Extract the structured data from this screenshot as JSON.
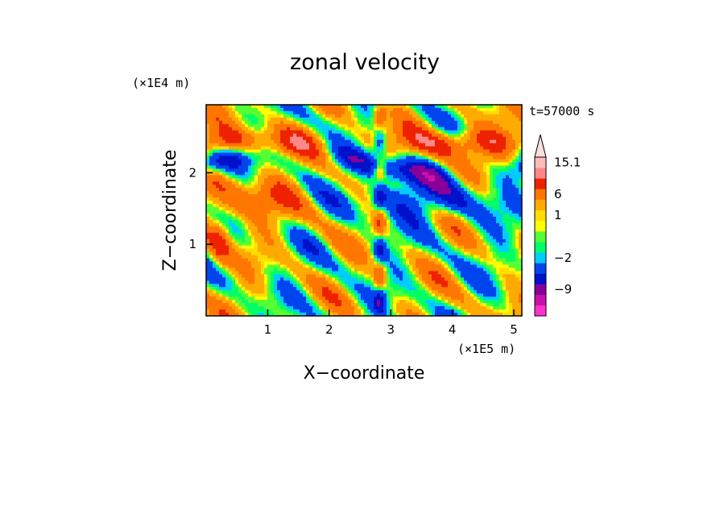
{
  "chart_data": {
    "type": "heatmap",
    "title": "zonal velocity",
    "xlabel": "X−coordinate",
    "ylabel": "Z−coordinate",
    "x_unit": "(×1E5 m)",
    "y_unit": "(×1E4 m)",
    "time_label": "t=57000 s",
    "xlim": [
      0,
      5.13
    ],
    "ylim": [
      0,
      2.95
    ],
    "x_ticks": [
      {
        "value": 1,
        "label": "1"
      },
      {
        "value": 2,
        "label": "2"
      },
      {
        "value": 3,
        "label": "3"
      },
      {
        "value": 4,
        "label": "4"
      },
      {
        "value": 5,
        "label": "5"
      }
    ],
    "y_ticks": [
      {
        "value": 1,
        "label": "1"
      },
      {
        "value": 2,
        "label": "2"
      }
    ],
    "colorbar": {
      "levels": [
        {
          "value": -15,
          "color": "#ff33cc"
        },
        {
          "value": -12,
          "color": "#cc11aa"
        },
        {
          "value": -9,
          "color": "#880099"
        },
        {
          "value": -6,
          "color": "#0011cc"
        },
        {
          "value": -3,
          "color": "#0044ee"
        },
        {
          "value": -2,
          "color": "#00ccff"
        },
        {
          "value": -1,
          "color": "#00ff66"
        },
        {
          "value": 0,
          "color": "#55ff33"
        },
        {
          "value": 0.5,
          "color": "#ffff00"
        },
        {
          "value": 1,
          "color": "#ffdd00"
        },
        {
          "value": 3,
          "color": "#ffaa00"
        },
        {
          "value": 6,
          "color": "#ff7700"
        },
        {
          "value": 9,
          "color": "#ee2200"
        },
        {
          "value": 12,
          "color": "#ff8888"
        },
        {
          "value": 15.1,
          "color": "#ffbbbb"
        }
      ],
      "tick_labels": [
        "15.1",
        "6",
        "1",
        "−2",
        "−9"
      ],
      "extend": "max"
    },
    "grid": false
  }
}
